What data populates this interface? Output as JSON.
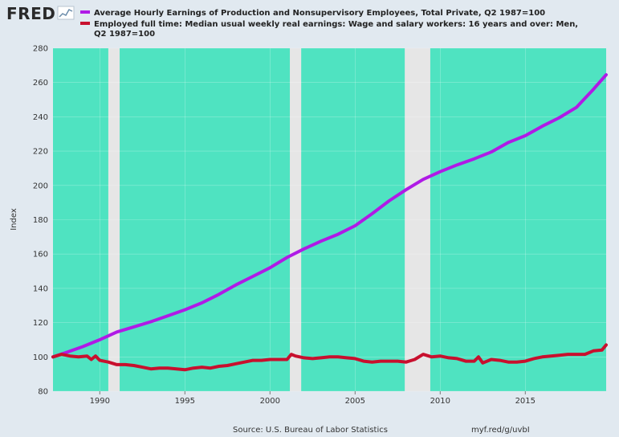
{
  "header": {
    "logo_text": "FRED",
    "logo_icon": "line-chart-icon"
  },
  "footer": {
    "source": "Source: U.S. Bureau of Labor Statistics",
    "short_url": "myf.red/g/uvbI"
  },
  "colors": {
    "background": "#e1e9f0",
    "plot_area": "#4fe3c1",
    "recession": "#e6e6e6",
    "series_1": "#b01ae6",
    "series_2": "#c8102e"
  },
  "chart_data": {
    "type": "line",
    "ylabel": "Index",
    "xlabel": "",
    "ylim": [
      80,
      280
    ],
    "yticks": [
      "80",
      "100",
      "120",
      "140",
      "160",
      "180",
      "200",
      "220",
      "240",
      "260",
      "280"
    ],
    "xlim": [
      "1987-04-01",
      "2019-10-01"
    ],
    "xticks": [
      "1990",
      "1995",
      "2000",
      "2005",
      "2010",
      "2015"
    ],
    "grid": true,
    "legend_position": "top-left",
    "recessions": [
      [
        "1990-07-01",
        "1991-03-01"
      ],
      [
        "2001-03-01",
        "2001-11-01"
      ],
      [
        "2007-12-01",
        "2009-06-01"
      ]
    ],
    "series": [
      {
        "name": "Average Hourly Earnings of Production and Nonsupervisory Employees, Total Private, Q2 1987=100",
        "color": "#b01ae6",
        "x": [
          "1987-04-01",
          "1988-01-01",
          "1989-01-01",
          "1990-01-01",
          "1991-01-01",
          "1992-01-01",
          "1993-01-01",
          "1994-01-01",
          "1995-01-01",
          "1996-01-01",
          "1997-01-01",
          "1998-01-01",
          "1999-01-01",
          "2000-01-01",
          "2001-01-01",
          "2002-01-01",
          "2003-01-01",
          "2004-01-01",
          "2005-01-01",
          "2006-01-01",
          "2007-01-01",
          "2008-01-01",
          "2009-01-01",
          "2010-01-01",
          "2011-01-01",
          "2012-01-01",
          "2013-01-01",
          "2014-01-01",
          "2015-01-01",
          "2016-01-01",
          "2017-01-01",
          "2018-01-01",
          "2019-01-01",
          "2019-10-01"
        ],
        "values": [
          100,
          102.5,
          106,
          110,
          114.5,
          117.5,
          120.5,
          124,
          127.5,
          131.5,
          136.5,
          142,
          147,
          152,
          158,
          163,
          167.5,
          171.5,
          176.5,
          183.5,
          191,
          197.5,
          203.5,
          208,
          212,
          215.5,
          219.5,
          225,
          229,
          234.5,
          239.5,
          245.5,
          256,
          264.5
        ]
      },
      {
        "name": "Employed full time: Median usual weekly real earnings: Wage and salary workers: 16 years and over: Men, Q2 1987=100",
        "color": "#c8102e",
        "x": [
          "1987-04-01",
          "1987-10-01",
          "1988-04-01",
          "1988-10-01",
          "1989-04-01",
          "1989-07-01",
          "1989-10-01",
          "1990-01-01",
          "1990-07-01",
          "1991-01-01",
          "1991-07-01",
          "1992-01-01",
          "1992-07-01",
          "1993-01-01",
          "1993-07-01",
          "1994-01-01",
          "1994-07-01",
          "1995-01-01",
          "1995-07-01",
          "1996-01-01",
          "1996-07-01",
          "1997-01-01",
          "1997-07-01",
          "1998-01-01",
          "1998-07-01",
          "1999-01-01",
          "1999-07-01",
          "2000-01-01",
          "2000-07-01",
          "2001-01-01",
          "2001-04-01",
          "2001-07-01",
          "2002-01-01",
          "2002-07-01",
          "2003-01-01",
          "2003-07-01",
          "2004-01-01",
          "2004-07-01",
          "2005-01-01",
          "2005-07-01",
          "2006-01-01",
          "2006-07-01",
          "2007-01-01",
          "2007-07-01",
          "2008-01-01",
          "2008-07-01",
          "2009-01-01",
          "2009-07-01",
          "2010-01-01",
          "2010-07-01",
          "2011-01-01",
          "2011-07-01",
          "2012-01-01",
          "2012-04-01",
          "2012-07-01",
          "2013-01-01",
          "2013-07-01",
          "2014-01-01",
          "2014-07-01",
          "2015-01-01",
          "2015-07-01",
          "2016-01-01",
          "2016-07-01",
          "2017-01-01",
          "2017-07-01",
          "2018-01-01",
          "2018-07-01",
          "2019-01-01",
          "2019-07-01",
          "2019-10-01"
        ],
        "values": [
          100,
          101.5,
          100.5,
          100,
          100.5,
          98.5,
          100.5,
          98,
          97,
          95.5,
          95.5,
          95,
          94,
          93,
          93.5,
          93.5,
          93,
          92.5,
          93.5,
          94,
          93.5,
          94.5,
          95,
          96,
          97,
          98,
          98,
          98.5,
          98.5,
          98.5,
          101.5,
          100.5,
          99.5,
          99,
          99.5,
          100,
          100,
          99.5,
          99,
          97.5,
          97,
          97.5,
          97.5,
          97.5,
          97,
          98.5,
          101.5,
          100,
          100.5,
          99.5,
          99,
          97.5,
          97.5,
          100,
          96.5,
          98.5,
          98,
          97,
          97,
          97.5,
          99,
          100,
          100.5,
          101,
          101.5,
          101.5,
          101.5,
          103.5,
          104,
          107
        ]
      }
    ]
  }
}
